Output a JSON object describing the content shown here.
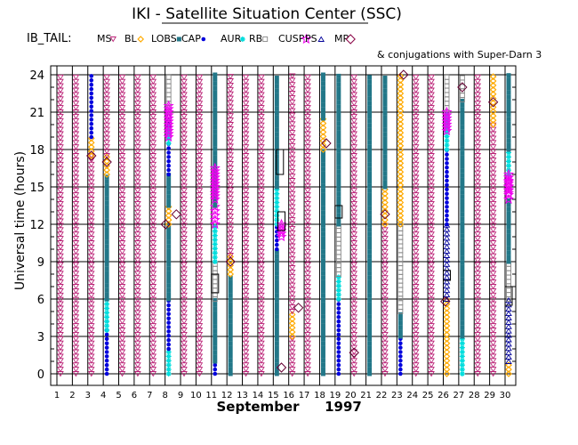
{
  "header": {
    "title": "IKI - Satellite Situation Center (SSC)",
    "satellite_label": "IB_TAIL:",
    "legend": [
      {
        "label": "MS",
        "color": "#bb2277",
        "marker": "triangle-down"
      },
      {
        "label": "BL",
        "color": "#ffaa00",
        "marker": "diamond"
      },
      {
        "label": "LOBS",
        "color": "#227788",
        "marker": "square-filled"
      },
      {
        "label": "CAP",
        "color": "#0000dd",
        "marker": "dot"
      },
      {
        "label": "AUR",
        "color": "#00dddd",
        "marker": "star"
      },
      {
        "label": "RB",
        "color": "#888888",
        "marker": "square-open"
      },
      {
        "label": "CUSP",
        "color": "#ee00ee",
        "marker": "star-open"
      },
      {
        "label": "PS",
        "color": "#000099",
        "marker": "triangle-up"
      },
      {
        "label": "MP",
        "color": "#880044",
        "marker": "diamond-open"
      }
    ],
    "conjugation_note": "& conjugations with Super-Darn 3"
  },
  "chart_data": {
    "type": "scatter",
    "title": "IKI - Satellite Situation Center (SSC)",
    "xlabel": "September 1997",
    "xlabel_month": "September",
    "xlabel_year": "1997",
    "ylabel": "Universal time (hours)",
    "xlim": [
      1,
      30
    ],
    "ylim": [
      0,
      24
    ],
    "x_ticks": [
      1,
      2,
      3,
      4,
      5,
      6,
      7,
      8,
      9,
      10,
      11,
      12,
      13,
      14,
      15,
      16,
      17,
      18,
      19,
      20,
      21,
      22,
      23,
      24,
      25,
      26,
      27,
      28,
      29,
      30
    ],
    "y_ticks": [
      0,
      3,
      6,
      9,
      12,
      15,
      18,
      21,
      24
    ],
    "grid": true,
    "days": [
      {
        "day": 1,
        "segments": [
          {
            "region": "MS",
            "from": 0,
            "to": 24
          }
        ]
      },
      {
        "day": 2,
        "segments": [
          {
            "region": "MS",
            "from": 0,
            "to": 24
          }
        ]
      },
      {
        "day": 3,
        "segments": [
          {
            "region": "MS",
            "from": 0,
            "to": 17.5
          },
          {
            "region": "BL",
            "from": 17.5,
            "to": 19
          },
          {
            "region": "CAP",
            "from": 19,
            "to": 24
          }
        ]
      },
      {
        "day": 4,
        "segments": [
          {
            "region": "CAP",
            "from": 0,
            "to": 3.5
          },
          {
            "region": "AUR",
            "from": 3.5,
            "to": 6
          },
          {
            "region": "LOBS",
            "from": 6,
            "to": 16
          },
          {
            "region": "BL",
            "from": 16,
            "to": 17.5
          },
          {
            "region": "MS",
            "from": 17.5,
            "to": 24
          }
        ]
      },
      {
        "day": 5,
        "segments": [
          {
            "region": "MS",
            "from": 0,
            "to": 24
          }
        ]
      },
      {
        "day": 6,
        "segments": [
          {
            "region": "MS",
            "from": 0,
            "to": 24
          }
        ]
      },
      {
        "day": 7,
        "segments": [
          {
            "region": "MS",
            "from": 0,
            "to": 24
          }
        ]
      },
      {
        "day": 8,
        "segments": [
          {
            "region": "AUR",
            "from": 0,
            "to": 2
          },
          {
            "region": "CAP",
            "from": 2,
            "to": 6
          },
          {
            "region": "LOBS",
            "from": 6,
            "to": 12
          },
          {
            "region": "BL",
            "from": 12,
            "to": 13.5
          },
          {
            "region": "LOBS",
            "from": 13.5,
            "to": 16
          },
          {
            "region": "CAP",
            "from": 16,
            "to": 18.5
          },
          {
            "region": "AUR",
            "from": 18.5,
            "to": 20
          },
          {
            "region": "PS",
            "from": 20,
            "to": 21
          },
          {
            "region": "RB",
            "from": 21,
            "to": 24
          }
        ]
      },
      {
        "day": 9,
        "segments": [
          {
            "region": "MS",
            "from": 0,
            "to": 24
          }
        ]
      },
      {
        "day": 10,
        "segments": [
          {
            "region": "MS",
            "from": 0,
            "to": 24
          }
        ]
      },
      {
        "day": 11,
        "segments": [
          {
            "region": "CAP",
            "from": 0,
            "to": 1
          },
          {
            "region": "LOBS",
            "from": 1,
            "to": 6
          },
          {
            "region": "RB",
            "from": 6,
            "to": 9
          },
          {
            "region": "AUR",
            "from": 9,
            "to": 12
          },
          {
            "region": "CUSP",
            "from": 12,
            "to": 13.5
          },
          {
            "region": "LOBS",
            "from": 13.5,
            "to": 24
          }
        ]
      },
      {
        "day": 12,
        "segments": [
          {
            "region": "LOBS",
            "from": 0,
            "to": 8
          },
          {
            "region": "BL",
            "from": 8,
            "to": 9.5
          },
          {
            "region": "MS",
            "from": 9.5,
            "to": 24
          }
        ]
      },
      {
        "day": 13,
        "segments": [
          {
            "region": "MS",
            "from": 0,
            "to": 24
          }
        ]
      },
      {
        "day": 14,
        "segments": [
          {
            "region": "MS",
            "from": 0,
            "to": 24
          }
        ]
      },
      {
        "day": 15,
        "segments": [
          {
            "region": "LOBS",
            "from": 0,
            "to": 10
          },
          {
            "region": "CAP",
            "from": 10,
            "to": 12
          },
          {
            "region": "AUR",
            "from": 12,
            "to": 15
          },
          {
            "region": "LOBS",
            "from": 15,
            "to": 24
          }
        ]
      },
      {
        "day": 16,
        "segments": [
          {
            "region": "MS",
            "from": 0,
            "to": 3
          },
          {
            "region": "BL",
            "from": 3,
            "to": 5
          },
          {
            "region": "MS",
            "from": 5,
            "to": 24
          }
        ]
      },
      {
        "day": 17,
        "segments": [
          {
            "region": "MS",
            "from": 0,
            "to": 24
          }
        ]
      },
      {
        "day": 18,
        "segments": [
          {
            "region": "LOBS",
            "from": 0,
            "to": 18
          },
          {
            "region": "BL",
            "from": 18,
            "to": 20.5
          },
          {
            "region": "LOBS",
            "from": 20.5,
            "to": 24
          }
        ]
      },
      {
        "day": 19,
        "segments": [
          {
            "region": "CAP",
            "from": 0,
            "to": 6
          },
          {
            "region": "AUR",
            "from": 6,
            "to": 8
          },
          {
            "region": "RB",
            "from": 8,
            "to": 12
          },
          {
            "region": "LOBS",
            "from": 12,
            "to": 24
          }
        ]
      },
      {
        "day": 20,
        "segments": [
          {
            "region": "MS",
            "from": 0,
            "to": 24
          }
        ]
      },
      {
        "day": 21,
        "segments": [
          {
            "region": "LOBS",
            "from": 0,
            "to": 24
          }
        ]
      },
      {
        "day": 22,
        "segments": [
          {
            "region": "MS",
            "from": 0,
            "to": 12
          },
          {
            "region": "BL",
            "from": 12,
            "to": 15
          },
          {
            "region": "LOBS",
            "from": 15,
            "to": 24
          }
        ]
      },
      {
        "day": 23,
        "segments": [
          {
            "region": "CAP",
            "from": 0,
            "to": 3
          },
          {
            "region": "LOBS",
            "from": 3,
            "to": 5
          },
          {
            "region": "RB",
            "from": 5,
            "to": 12
          },
          {
            "region": "BL",
            "from": 12,
            "to": 24
          }
        ]
      },
      {
        "day": 24,
        "segments": [
          {
            "region": "MS",
            "from": 0,
            "to": 24
          }
        ]
      },
      {
        "day": 25,
        "segments": [
          {
            "region": "MS",
            "from": 0,
            "to": 24
          }
        ]
      },
      {
        "day": 26,
        "segments": [
          {
            "region": "BL",
            "from": 0,
            "to": 6
          },
          {
            "region": "PS",
            "from": 6,
            "to": 12
          },
          {
            "region": "CAP",
            "from": 12,
            "to": 18
          },
          {
            "region": "AUR",
            "from": 18,
            "to": 21
          },
          {
            "region": "RB",
            "from": 21,
            "to": 24
          }
        ]
      },
      {
        "day": 27,
        "segments": [
          {
            "region": "AUR",
            "from": 0,
            "to": 3
          },
          {
            "region": "LOBS",
            "from": 3,
            "to": 22
          },
          {
            "region": "RB",
            "from": 22,
            "to": 24
          }
        ]
      },
      {
        "day": 28,
        "segments": [
          {
            "region": "MS",
            "from": 0,
            "to": 24
          }
        ]
      },
      {
        "day": 29,
        "segments": [
          {
            "region": "MS",
            "from": 0,
            "to": 20
          },
          {
            "region": "BL",
            "from": 20,
            "to": 24
          }
        ]
      },
      {
        "day": 30,
        "segments": [
          {
            "region": "BL",
            "from": 0,
            "to": 1
          },
          {
            "region": "PS",
            "from": 1,
            "to": 6
          },
          {
            "region": "RB",
            "from": 6,
            "to": 9
          },
          {
            "region": "LOBS",
            "from": 9,
            "to": 14
          },
          {
            "region": "CUSP",
            "from": 14,
            "to": 16
          },
          {
            "region": "AUR",
            "from": 16,
            "to": 18
          },
          {
            "region": "LOBS",
            "from": 18,
            "to": 24
          }
        ]
      }
    ],
    "mp_crossings": [
      {
        "day": 3,
        "ut": 17.5
      },
      {
        "day": 4,
        "ut": 17
      },
      {
        "day": 7.8,
        "ut": 12
      },
      {
        "day": 8.5,
        "ut": 12.8
      },
      {
        "day": 12,
        "ut": 9
      },
      {
        "day": 15.3,
        "ut": 0.5
      },
      {
        "day": 16.4,
        "ut": 5.3
      },
      {
        "day": 18.2,
        "ut": 18.5
      },
      {
        "day": 20,
        "ut": 1.7
      },
      {
        "day": 22,
        "ut": 12.8
      },
      {
        "day": 23.2,
        "ut": 24
      },
      {
        "day": 25.9,
        "ut": 5.8
      },
      {
        "day": 27,
        "ut": 23
      },
      {
        "day": 29,
        "ut": 21.8
      }
    ],
    "conjugations": [
      {
        "day": 11,
        "from": 6.5,
        "to": 8
      },
      {
        "day": 15.2,
        "from": 16,
        "to": 18
      },
      {
        "day": 15.3,
        "from": 11.5,
        "to": 13
      },
      {
        "day": 19,
        "from": 12.5,
        "to": 13.5
      },
      {
        "day": 26,
        "from": 7.5,
        "to": 8.3
      },
      {
        "day": 30,
        "from": 5.5,
        "to": 7
      }
    ],
    "cusp_clusters": [
      {
        "day": 8,
        "from": 19,
        "to": 21.5
      },
      {
        "day": 11,
        "from": 14,
        "to": 16.5
      },
      {
        "day": 15.3,
        "from": 11,
        "to": 12
      },
      {
        "day": 26,
        "from": 19.5,
        "to": 21
      },
      {
        "day": 30,
        "from": 14.5,
        "to": 16
      }
    ]
  }
}
